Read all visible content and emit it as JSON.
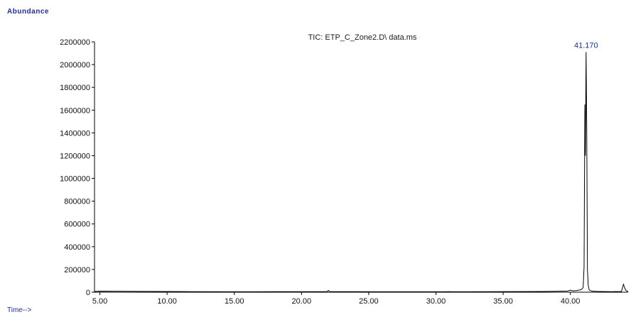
{
  "chart_data": {
    "type": "line",
    "title": "TIC: ETP_C_Zone2.D\\ data.ms",
    "ylabel": "Abundance",
    "xlabel": "Time-->",
    "xlim": [
      4.6,
      44.3
    ],
    "ylim": [
      0,
      2200000
    ],
    "x_ticks": [
      5,
      10,
      15,
      20,
      25,
      30,
      35,
      40
    ],
    "x_tick_labels": [
      "5.00",
      "10.00",
      "15.00",
      "20.00",
      "25.00",
      "30.00",
      "35.00",
      "40.00"
    ],
    "y_ticks": [
      0,
      200000,
      400000,
      600000,
      800000,
      1000000,
      1200000,
      1400000,
      1600000,
      1800000,
      2000000,
      2200000
    ],
    "y_tick_labels": [
      "0",
      "200000",
      "400000",
      "600000",
      "800000",
      "1000000",
      "1200000",
      "1400000",
      "1600000",
      "1800000",
      "2000000",
      "2200000"
    ],
    "grid": false,
    "series": [
      {
        "x": [
          4.6,
          5.0,
          8.0,
          12.0,
          16.0,
          20.0,
          21.9,
          22.0,
          22.1,
          26.0,
          30.0,
          34.0,
          38.0,
          39.8,
          40.0,
          40.2,
          40.5,
          40.8,
          40.95,
          41.02,
          41.08,
          41.12,
          41.17,
          41.22,
          41.27,
          41.33,
          41.4,
          41.6,
          42.0,
          43.0,
          43.8,
          43.95,
          44.05,
          44.15,
          44.3
        ],
        "y": [
          6000,
          9000,
          7000,
          5000,
          4000,
          5000,
          5000,
          16000,
          5000,
          4000,
          4000,
          5000,
          6000,
          10000,
          18000,
          12000,
          15000,
          22000,
          40000,
          220000,
          1650000,
          1200000,
          2110000,
          1400000,
          200000,
          60000,
          20000,
          9000,
          7000,
          5000,
          6000,
          70000,
          35000,
          12000,
          8000
        ]
      }
    ],
    "annotations": [
      {
        "text": "41.170",
        "x": 41.17,
        "y": 2110000
      }
    ],
    "colors": {
      "line": "#000000",
      "axis": "#000000",
      "annotation": "#1f2f9a",
      "axis_label": "#1f2f9a"
    }
  }
}
